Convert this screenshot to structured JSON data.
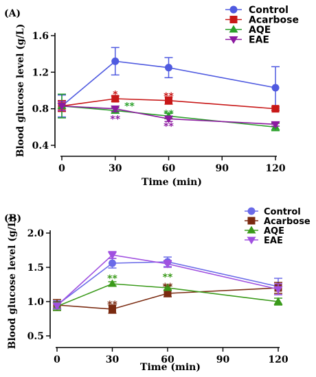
{
  "colors": {
    "Control": "#4f5ae0",
    "Acarbose": "#c81818",
    "AQE": "#2aa02a",
    "EAE": "#8c1aa0",
    "Control_b": "#6a6ae8",
    "Acarbose_b": "#7a2a10",
    "AQE_b": "#3a9a1a",
    "EAE_b": "#a050e0"
  },
  "chart_data": [
    {
      "type": "line",
      "panel_label": "(A)",
      "xlabel": "Time (min)",
      "ylabel": "Blood glucose level (g/L)",
      "x": [
        0,
        30,
        60,
        120
      ],
      "xticks": [
        "0",
        "30",
        "60",
        "90",
        "120"
      ],
      "xtick_values": [
        0,
        30,
        60,
        90,
        120
      ],
      "xlim": [
        0,
        120
      ],
      "yticks": [
        "0.4",
        "0.8",
        "1.2",
        "1.6"
      ],
      "ytick_values": [
        0.4,
        0.8,
        1.2,
        1.6
      ],
      "ylim": [
        0.4,
        1.6
      ],
      "legend": "top-right",
      "series": [
        {
          "name": "Control",
          "marker": "circle",
          "values": [
            0.83,
            1.32,
            1.25,
            1.03
          ],
          "errors": [
            0.12,
            0.15,
            0.11,
            0.23
          ]
        },
        {
          "name": "Acarbose",
          "marker": "square",
          "values": [
            0.83,
            0.91,
            0.89,
            0.8
          ],
          "errors": [
            0.06,
            0.03,
            0.04,
            0.02
          ]
        },
        {
          "name": "AQE",
          "marker": "triangle-up",
          "values": [
            0.83,
            0.78,
            0.72,
            0.6
          ],
          "errors": [
            0.13,
            0.03,
            0.03,
            0.04
          ]
        },
        {
          "name": "EAE",
          "marker": "triangle-down",
          "values": [
            0.83,
            0.8,
            0.69,
            0.63
          ],
          "errors": [
            0.05,
            0.03,
            0.03,
            0.02
          ]
        }
      ],
      "annotations": [
        {
          "x": 30,
          "y": 0.96,
          "text": "*",
          "series": "Acarbose"
        },
        {
          "x": 60,
          "y": 0.94,
          "text": "**",
          "series": "Acarbose"
        },
        {
          "x": 38,
          "y": 0.83,
          "text": "**",
          "series": "AQE"
        },
        {
          "x": 60,
          "y": 0.75,
          "text": "**",
          "series": "AQE"
        },
        {
          "x": 30,
          "y": 0.69,
          "text": "**",
          "series": "EAE"
        },
        {
          "x": 60,
          "y": 0.61,
          "text": "**",
          "series": "EAE"
        }
      ]
    },
    {
      "type": "line",
      "panel_label": "(B)",
      "xlabel": "Time (min)",
      "ylabel": "Blood glucose level (g/L)",
      "x": [
        0,
        30,
        60,
        120
      ],
      "xticks": [
        "0",
        "30",
        "60",
        "90",
        "120"
      ],
      "xtick_values": [
        0,
        30,
        60,
        90,
        120
      ],
      "xlim": [
        0,
        120
      ],
      "yticks": [
        "0.5",
        "1.0",
        "1.5",
        "2.0"
      ],
      "ytick_values": [
        0.5,
        1.0,
        1.5,
        2.0
      ],
      "ylim": [
        0.5,
        2.0
      ],
      "legend": "top-right",
      "series": [
        {
          "name": "Control",
          "marker": "circle",
          "values": [
            0.95,
            1.56,
            1.58,
            1.22
          ],
          "errors": [
            0.06,
            0.07,
            0.07,
            0.12
          ]
        },
        {
          "name": "Acarbose",
          "marker": "square",
          "values": [
            0.95,
            0.89,
            1.12,
            1.2
          ],
          "errors": [
            0.08,
            0.06,
            0.05,
            0.08
          ]
        },
        {
          "name": "AQE",
          "marker": "triangle-up",
          "values": [
            0.93,
            1.26,
            1.2,
            1.0
          ],
          "errors": [
            0.06,
            0.03,
            0.03,
            0.05
          ]
        },
        {
          "name": "EAE",
          "marker": "triangle-down",
          "values": [
            0.94,
            1.68,
            1.55,
            1.18
          ],
          "errors": [
            0.04,
            0.05,
            0.05,
            0.08
          ]
        }
      ],
      "annotations": [
        {
          "x": 30,
          "y": 1.34,
          "text": "**",
          "series": "AQE"
        },
        {
          "x": 60,
          "y": 1.36,
          "text": "**",
          "series": "AQE"
        },
        {
          "x": 60,
          "y": 1.22,
          "text": "**",
          "series": "Acarbose"
        },
        {
          "x": 30,
          "y": 0.96,
          "text": "**",
          "series": "Acarbose"
        }
      ]
    }
  ]
}
